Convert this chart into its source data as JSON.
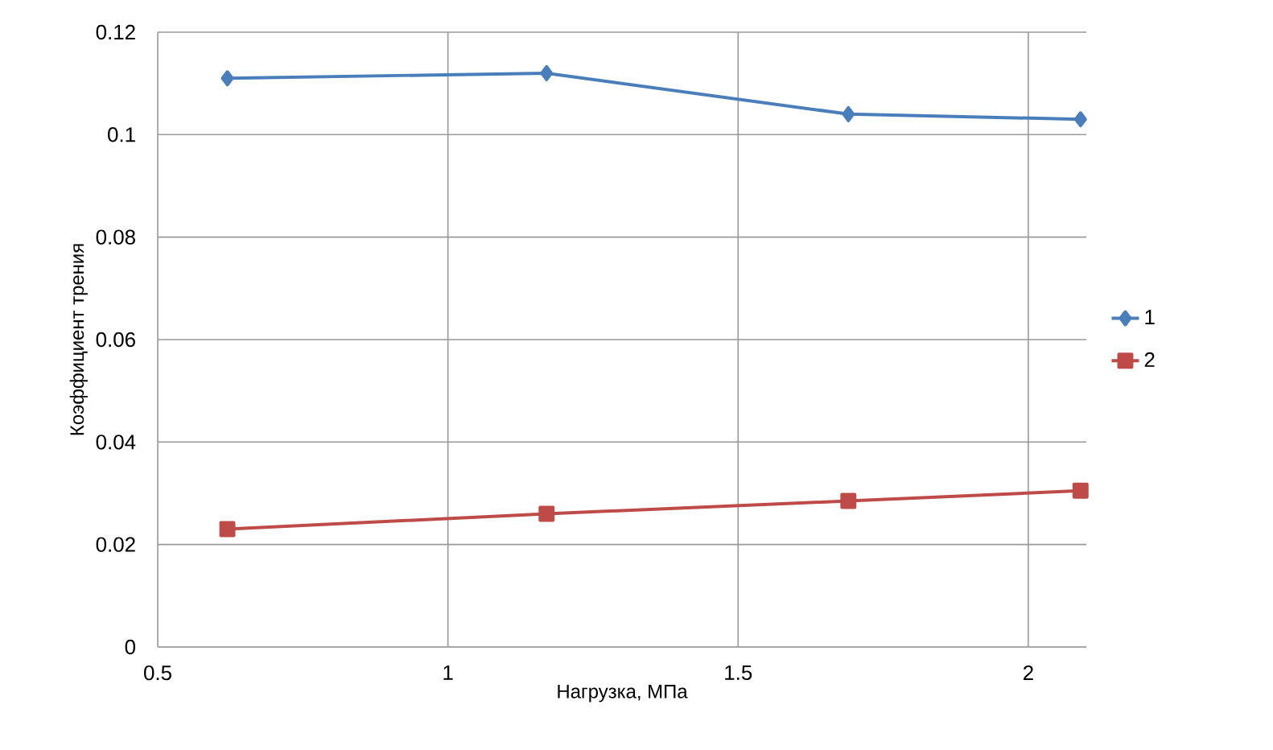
{
  "chart_data": {
    "type": "line",
    "xlabel": "Нагрузка, МПа",
    "ylabel": "Коэффициент трения",
    "x": [
      0.62,
      1.17,
      1.69,
      2.09
    ],
    "series": [
      {
        "name": "1",
        "color": "#4a7ebb",
        "marker": "diamond",
        "values": [
          0.111,
          0.112,
          0.104,
          0.103
        ]
      },
      {
        "name": "2",
        "color": "#be4b48",
        "marker": "square",
        "values": [
          0.023,
          0.026,
          0.0285,
          0.0305
        ]
      }
    ],
    "xlim": [
      0.5,
      2.1
    ],
    "ylim": [
      0,
      0.12
    ],
    "xticks": [
      0.5,
      1,
      1.5,
      2
    ],
    "yticks": [
      0,
      0.02,
      0.04,
      0.06,
      0.08,
      0.1,
      0.12
    ],
    "grid": true,
    "legend": "right",
    "line_style": "solid"
  }
}
